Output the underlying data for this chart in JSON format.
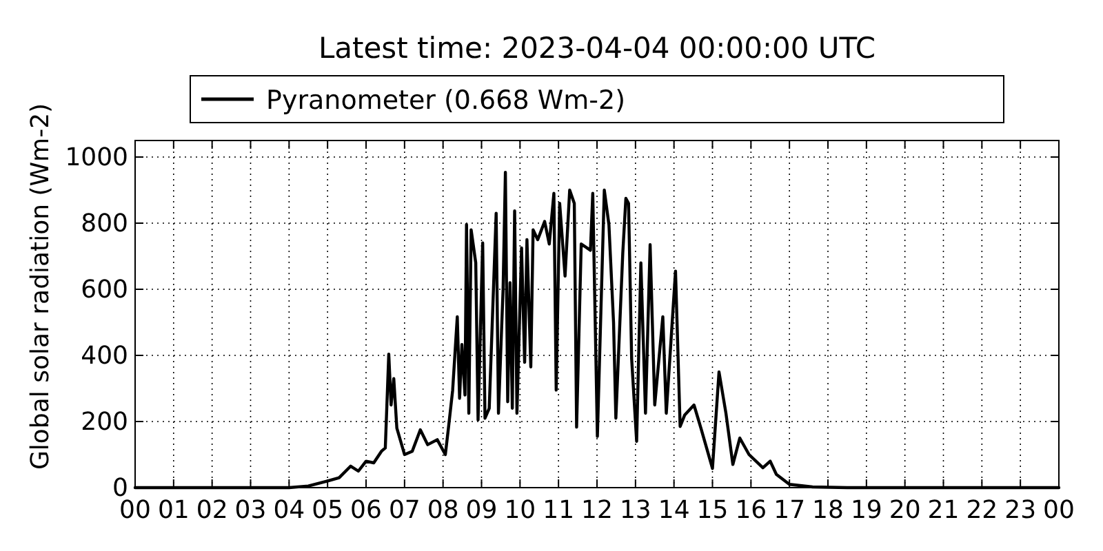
{
  "chart_data": {
    "type": "line",
    "title": "Latest time: 2023-04-04 00:00:00 UTC",
    "ylabel": "Global solar radiation (Wm-2)",
    "series": [
      {
        "name": "Pyranometer (0.668 Wm-2)",
        "color": "#000000",
        "x": [
          0,
          4,
          4.5,
          5,
          5.3,
          5.6,
          5.8,
          6,
          6.2,
          6.4,
          6.5,
          6.59,
          6.65,
          6.72,
          6.8,
          7,
          7.2,
          7.41,
          7.6,
          7.85,
          8.06,
          8.15,
          8.25,
          8.37,
          8.43,
          8.49,
          8.57,
          8.61,
          8.67,
          8.73,
          8.85,
          8.91,
          9.03,
          9.09,
          9.2,
          9.38,
          9.44,
          9.56,
          9.62,
          9.68,
          9.74,
          9.8,
          9.86,
          9.92,
          10.04,
          10.12,
          10.18,
          10.28,
          10.34,
          10.46,
          10.64,
          10.76,
          10.88,
          10.94,
          11.03,
          11.17,
          11.29,
          11.41,
          11.47,
          11.59,
          11.83,
          11.89,
          12.01,
          12.19,
          12.31,
          12.43,
          12.49,
          12.67,
          12.75,
          12.82,
          12.9,
          13.03,
          13.14,
          13.26,
          13.38,
          13.5,
          13.71,
          13.8,
          14.04,
          14.16,
          14.28,
          14.52,
          14.7,
          15,
          15.17,
          15.35,
          15.53,
          15.71,
          15.95,
          16.31,
          16.5,
          16.66,
          17,
          17.6,
          18.5,
          24
        ],
        "values": [
          0,
          0,
          5,
          20,
          30,
          65,
          50,
          80,
          75,
          110,
          120,
          404,
          250,
          330,
          180,
          100,
          110,
          175,
          130,
          145,
          100,
          190,
          295,
          517,
          270,
          433,
          280,
          796,
          225,
          780,
          680,
          205,
          740,
          210,
          240,
          830,
          225,
          600,
          954,
          260,
          620,
          240,
          837,
          225,
          725,
          379,
          750,
          365,
          780,
          750,
          805,
          737,
          890,
          295,
          860,
          640,
          900,
          860,
          183,
          737,
          718,
          890,
          155,
          900,
          795,
          500,
          210,
          710,
          875,
          860,
          390,
          140,
          680,
          225,
          735,
          250,
          517,
          225,
          655,
          185,
          220,
          250,
          180,
          58,
          350,
          225,
          70,
          150,
          100,
          60,
          80,
          40,
          10,
          2,
          0,
          0
        ]
      }
    ],
    "xlim": [
      0,
      24
    ],
    "xticks": [
      {
        "value": 0,
        "label": "00"
      },
      {
        "value": 1,
        "label": "01"
      },
      {
        "value": 2,
        "label": "02"
      },
      {
        "value": 3,
        "label": "03"
      },
      {
        "value": 4,
        "label": "04"
      },
      {
        "value": 5,
        "label": "05"
      },
      {
        "value": 6,
        "label": "06"
      },
      {
        "value": 7,
        "label": "07"
      },
      {
        "value": 8,
        "label": "08"
      },
      {
        "value": 9,
        "label": "09"
      },
      {
        "value": 10,
        "label": "10"
      },
      {
        "value": 11,
        "label": "11"
      },
      {
        "value": 12,
        "label": "12"
      },
      {
        "value": 13,
        "label": "13"
      },
      {
        "value": 14,
        "label": "14"
      },
      {
        "value": 15,
        "label": "15"
      },
      {
        "value": 16,
        "label": "16"
      },
      {
        "value": 17,
        "label": "17"
      },
      {
        "value": 18,
        "label": "18"
      },
      {
        "value": 19,
        "label": "19"
      },
      {
        "value": 20,
        "label": "20"
      },
      {
        "value": 21,
        "label": "21"
      },
      {
        "value": 22,
        "label": "22"
      },
      {
        "value": 23,
        "label": "23"
      },
      {
        "value": 24,
        "label": "00"
      }
    ],
    "ylim": [
      0,
      1050
    ],
    "yticks": [
      0,
      200,
      400,
      600,
      800,
      1000
    ],
    "grid": true,
    "legend": "top",
    "line_style": "solid"
  }
}
